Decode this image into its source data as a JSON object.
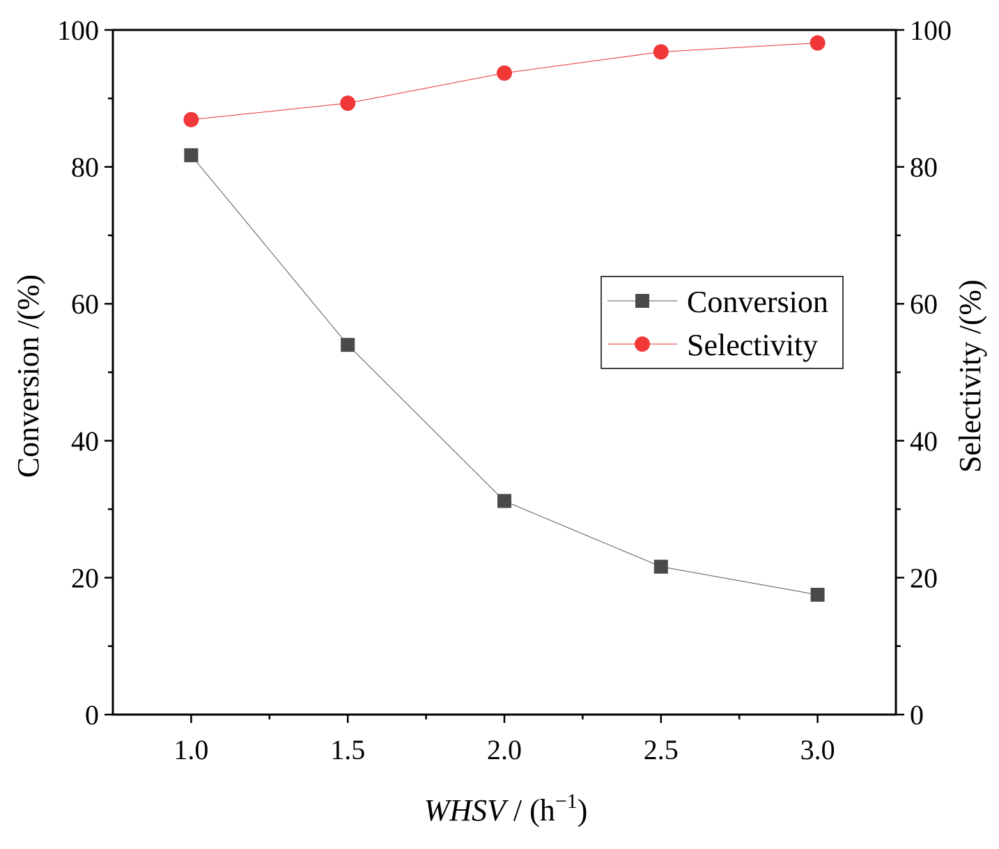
{
  "chart_data": {
    "type": "line",
    "x": [
      1.0,
      1.5,
      2.0,
      2.5,
      3.0
    ],
    "x_tick_labels": [
      "1.0",
      "1.5",
      "2.0",
      "2.5",
      "3.0"
    ],
    "xlim": [
      0.75,
      3.25
    ],
    "xlabel": {
      "italic": "WHSV",
      "rest": " / (h",
      "superscript": "−1",
      "close": ")"
    },
    "ylabel_left": "Conversion /(%)",
    "ylabel_right": "Selectivity /(%)",
    "ylim": [
      0,
      100
    ],
    "y_ticks": [
      0,
      20,
      40,
      60,
      80,
      100
    ],
    "y_tick_labels": [
      "0",
      "20",
      "40",
      "60",
      "80",
      "100"
    ],
    "series": [
      {
        "name": "Conversion",
        "axis": "left",
        "marker": "square",
        "color": "#4a4a4a",
        "line_color": "#555555",
        "values": [
          81.7,
          54.0,
          31.2,
          21.6,
          17.5
        ]
      },
      {
        "name": "Selectivity",
        "axis": "right",
        "marker": "circle",
        "color": "#f03838",
        "line_color": "#e83030",
        "values": [
          86.9,
          89.3,
          93.7,
          96.8,
          98.1
        ]
      }
    ],
    "legend": {
      "position": "center-right",
      "entries": [
        "Conversion",
        "Selectivity"
      ]
    }
  }
}
